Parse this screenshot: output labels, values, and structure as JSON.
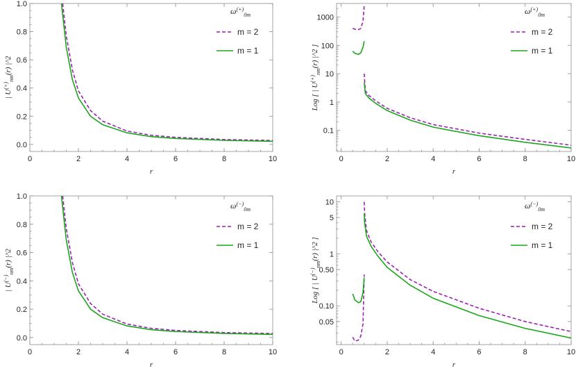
{
  "chart_data": [
    {
      "type": "line",
      "xlabel": "r",
      "ylabel": "| U^(+)_nm(r) |^2",
      "yscale": "linear",
      "xlim": [
        0,
        10
      ],
      "ylim": [
        -0.05,
        1.0
      ],
      "xticks": [
        "0",
        "2",
        "4",
        "6",
        "8",
        "10"
      ],
      "yticks": [
        "0.0",
        "0.2",
        "0.4",
        "0.6",
        "0.8",
        "1.0"
      ],
      "legend": {
        "title": "ω^(+)_0m",
        "position": "top-right"
      },
      "series": [
        {
          "name": "m = 2",
          "color": "#9b1fb3",
          "dash": true,
          "x": [
            1.35,
            1.5,
            1.75,
            2,
            2.5,
            3,
            4,
            5,
            6,
            8,
            10
          ],
          "y": [
            1.0,
            0.77,
            0.53,
            0.38,
            0.24,
            0.165,
            0.095,
            0.065,
            0.05,
            0.035,
            0.028
          ]
        },
        {
          "name": "m = 1",
          "color": "#1aa61a",
          "dash": false,
          "x": [
            1.3,
            1.5,
            1.75,
            2,
            2.5,
            3,
            4,
            5,
            6,
            8,
            10
          ],
          "y": [
            1.0,
            0.69,
            0.46,
            0.33,
            0.2,
            0.14,
            0.082,
            0.055,
            0.042,
            0.029,
            0.022
          ]
        }
      ]
    },
    {
      "type": "line",
      "xlabel": "r",
      "ylabel": "Log [ | U^(+)_nm(r) |^2 ]",
      "yscale": "log",
      "xlim": [
        -0.2,
        10
      ],
      "ylim": [
        0.018,
        3000
      ],
      "xticks": [
        "0",
        "2",
        "4",
        "6",
        "8",
        "10"
      ],
      "yticks": [
        "0.1",
        "1",
        "10",
        "100",
        "1000"
      ],
      "legend": {
        "title": "ω^(+)_0m",
        "position": "top-right"
      },
      "series": [
        {
          "name": "m = 2",
          "color": "#9b1fb3",
          "dash": true,
          "segments": [
            {
              "x": [
                0.5,
                0.6,
                0.75,
                0.85,
                0.95,
                1.0
              ],
              "y": [
                400,
                370,
                360,
                390,
                700,
                2500
              ]
            },
            {
              "x": [
                1.0,
                1.05,
                1.2,
                1.5,
                2,
                3,
                4,
                6,
                8,
                10
              ],
              "y": [
                10,
                2.5,
                1.7,
                1.1,
                0.6,
                0.28,
                0.16,
                0.08,
                0.048,
                0.03
              ]
            }
          ]
        },
        {
          "name": "m = 1",
          "color": "#1aa61a",
          "dash": false,
          "segments": [
            {
              "x": [
                0.5,
                0.6,
                0.75,
                0.85,
                0.95,
                1.0
              ],
              "y": [
                62,
                52,
                48,
                54,
                85,
                140
              ]
            },
            {
              "x": [
                1.0,
                1.05,
                1.2,
                1.5,
                2,
                3,
                4,
                6,
                8,
                10
              ],
              "y": [
                5,
                2.0,
                1.4,
                0.9,
                0.5,
                0.23,
                0.13,
                0.065,
                0.038,
                0.024
              ]
            }
          ]
        }
      ]
    },
    {
      "type": "line",
      "xlabel": "r",
      "ylabel": "| U^(−)_nm(r) |^2",
      "yscale": "linear",
      "xlim": [
        0,
        10
      ],
      "ylim": [
        -0.05,
        1.0
      ],
      "xticks": [
        "0",
        "2",
        "4",
        "6",
        "8",
        "10"
      ],
      "yticks": [
        "0.0",
        "0.2",
        "0.4",
        "0.6",
        "0.8",
        "1.0"
      ],
      "legend": {
        "title": "ω^(−)_0m",
        "position": "top-right"
      },
      "series": [
        {
          "name": "m = 2",
          "color": "#9b1fb3",
          "dash": true,
          "x": [
            1.35,
            1.5,
            1.75,
            2,
            2.5,
            3,
            4,
            5,
            6,
            8,
            10
          ],
          "y": [
            1.0,
            0.77,
            0.53,
            0.38,
            0.24,
            0.165,
            0.095,
            0.065,
            0.05,
            0.035,
            0.028
          ]
        },
        {
          "name": "m = 1",
          "color": "#1aa61a",
          "dash": false,
          "x": [
            1.3,
            1.5,
            1.75,
            2,
            2.5,
            3,
            4,
            5,
            6,
            8,
            10
          ],
          "y": [
            1.0,
            0.69,
            0.46,
            0.33,
            0.2,
            0.14,
            0.082,
            0.055,
            0.042,
            0.029,
            0.022
          ]
        }
      ]
    },
    {
      "type": "line",
      "xlabel": "r",
      "ylabel": "Log [ | U^(−)_nm(r) |^2 ]",
      "yscale": "log",
      "xlim": [
        -0.2,
        10
      ],
      "ylim": [
        0.018,
        13
      ],
      "xticks": [
        "0",
        "2",
        "4",
        "6",
        "8",
        "10"
      ],
      "yticks": [
        "0.05",
        "0.10",
        "0.50",
        "1",
        "5",
        "10"
      ],
      "legend": {
        "title": "ω^(−)_0m",
        "position": "top-right"
      },
      "series": [
        {
          "name": "m = 2",
          "color": "#9b1fb3",
          "dash": true,
          "segments": [
            {
              "x": [
                0.5,
                0.6,
                0.75,
                0.85,
                0.95,
                1.0
              ],
              "y": [
                0.025,
                0.021,
                0.022,
                0.026,
                0.045,
                0.4
              ]
            },
            {
              "x": [
                1.0,
                1.02,
                1.1,
                1.3,
                1.6,
                2,
                3,
                4,
                6,
                8,
                10
              ],
              "y": [
                10,
                6,
                2.8,
                1.7,
                1.1,
                0.7,
                0.32,
                0.19,
                0.09,
                0.05,
                0.032
              ]
            }
          ]
        },
        {
          "name": "m = 1",
          "color": "#1aa61a",
          "dash": false,
          "segments": [
            {
              "x": [
                0.5,
                0.6,
                0.75,
                0.85,
                0.95,
                1.0
              ],
              "y": [
                0.17,
                0.13,
                0.115,
                0.12,
                0.18,
                0.35
              ]
            },
            {
              "x": [
                1.0,
                1.02,
                1.1,
                1.3,
                1.6,
                2,
                3,
                4,
                6,
                8,
                10
              ],
              "y": [
                6,
                4,
                2.2,
                1.4,
                0.9,
                0.55,
                0.25,
                0.14,
                0.065,
                0.037,
                0.024
              ]
            }
          ]
        }
      ]
    }
  ]
}
